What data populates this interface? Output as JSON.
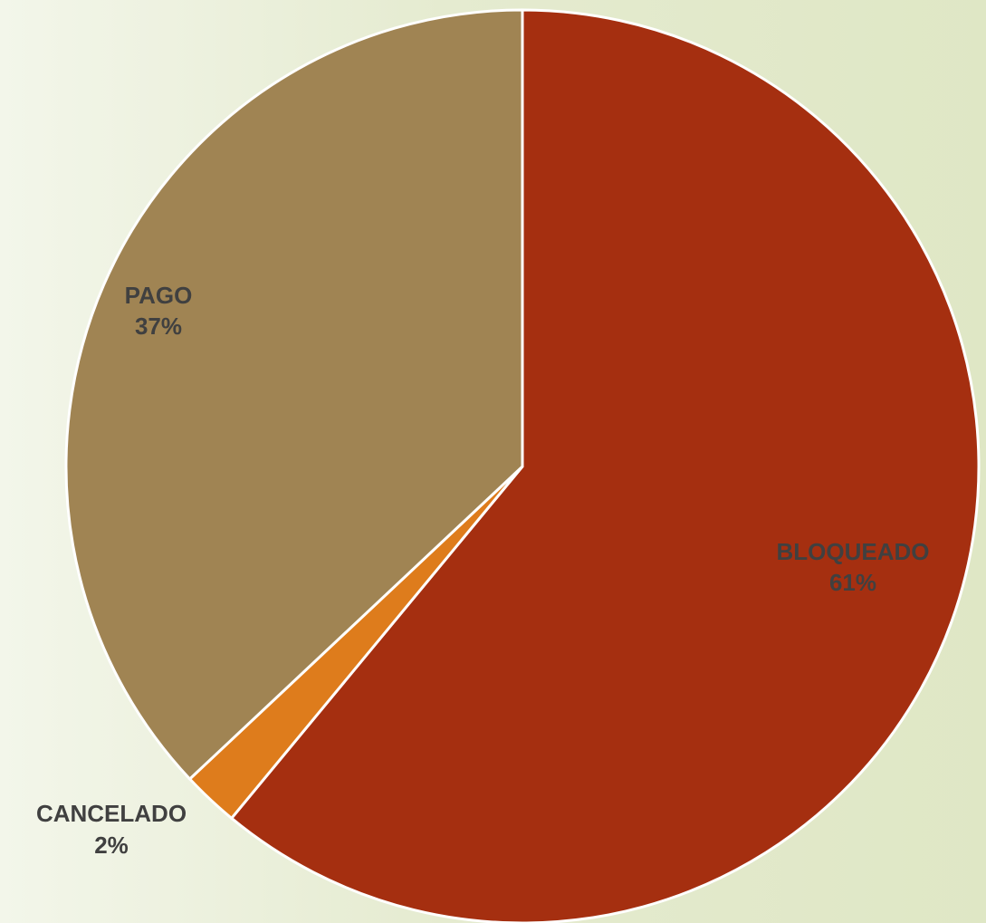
{
  "chart_data": {
    "type": "pie",
    "slices": [
      {
        "label": "BLOQUEADO",
        "percent_label": "61%",
        "value": 61,
        "color": "#a52f10"
      },
      {
        "label": "CANCELADO",
        "percent_label": "2%",
        "value": 2,
        "color": "#de7c1c"
      },
      {
        "label": "PAGO",
        "percent_label": "37%",
        "value": 37,
        "color": "#a08453"
      }
    ],
    "title": "",
    "legend": "none"
  }
}
